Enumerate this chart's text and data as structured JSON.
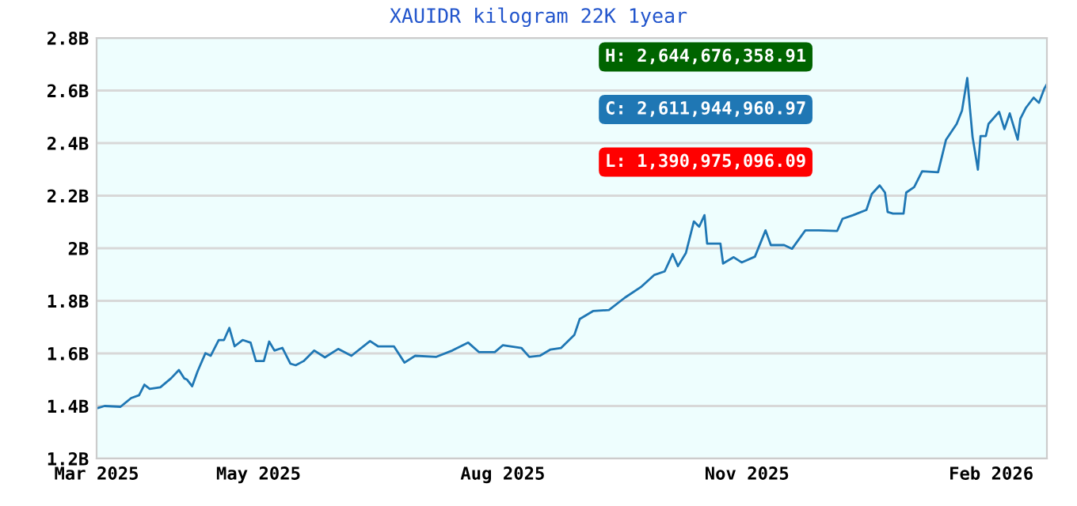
{
  "chart_data": {
    "type": "line",
    "title": "XAUIDR kilogram 22K 1year",
    "annotations": [
      "H: 2,644,676,358.91",
      "C: 2,611,944,960.97",
      "L: 1,390,975,096.09"
    ],
    "x": [
      "2025-03-01",
      "2025-03-04",
      "2025-03-10",
      "2025-03-14",
      "2025-03-17",
      "2025-03-19",
      "2025-03-21",
      "2025-03-25",
      "2025-03-29",
      "2025-04-01",
      "2025-04-03",
      "2025-04-04",
      "2025-04-06",
      "2025-04-08",
      "2025-04-11",
      "2025-04-13",
      "2025-04-16",
      "2025-04-18",
      "2025-04-20",
      "2025-04-22",
      "2025-04-25",
      "2025-04-28",
      "2025-04-30",
      "2025-05-03",
      "2025-05-05",
      "2025-05-07",
      "2025-05-10",
      "2025-05-13",
      "2025-05-15",
      "2025-05-18",
      "2025-05-22",
      "2025-05-26",
      "2025-05-31",
      "2025-06-05",
      "2025-06-12",
      "2025-06-15",
      "2025-06-21",
      "2025-06-25",
      "2025-06-29",
      "2025-07-07",
      "2025-07-13",
      "2025-07-19",
      "2025-07-23",
      "2025-07-29",
      "2025-08-01",
      "2025-08-08",
      "2025-08-11",
      "2025-08-15",
      "2025-08-19",
      "2025-08-23",
      "2025-08-28",
      "2025-08-30",
      "2025-09-04",
      "2025-09-10",
      "2025-09-16",
      "2025-09-22",
      "2025-09-27",
      "2025-10-01",
      "2025-10-04",
      "2025-10-06",
      "2025-10-09",
      "2025-10-12",
      "2025-10-14",
      "2025-10-16",
      "2025-10-17",
      "2025-10-22",
      "2025-10-23",
      "2025-10-27",
      "2025-10-30",
      "2025-11-04",
      "2025-11-08",
      "2025-11-10",
      "2025-11-15",
      "2025-11-18",
      "2025-11-23",
      "2025-11-28",
      "2025-12-05",
      "2025-12-07",
      "2025-12-11",
      "2025-12-16",
      "2025-12-18",
      "2025-12-21",
      "2025-12-23",
      "2025-12-24",
      "2025-12-26",
      "2025-12-30",
      "2025-12-31",
      "2026-01-03",
      "2026-01-06",
      "2026-01-12",
      "2026-01-15",
      "2026-01-19",
      "2026-01-21",
      "2026-01-23",
      "2026-01-24",
      "2026-01-25",
      "2026-01-27",
      "2026-01-28",
      "2026-01-30",
      "2026-01-31",
      "2026-02-04",
      "2026-02-06",
      "2026-02-08",
      "2026-02-11",
      "2026-02-12",
      "2026-02-14",
      "2026-02-17",
      "2026-02-19",
      "2026-02-21",
      "2026-02-22"
    ],
    "series": [
      {
        "color": "#1f77b4",
        "values": [
          1.391,
          1.4,
          1.397,
          1.43,
          1.441,
          1.481,
          1.465,
          1.471,
          1.505,
          1.537,
          1.505,
          1.501,
          1.475,
          1.531,
          1.601,
          1.591,
          1.651,
          1.651,
          1.697,
          1.627,
          1.651,
          1.641,
          1.571,
          1.571,
          1.645,
          1.611,
          1.621,
          1.561,
          1.555,
          1.571,
          1.611,
          1.585,
          1.617,
          1.591,
          1.647,
          1.627,
          1.627,
          1.565,
          1.591,
          1.587,
          1.611,
          1.641,
          1.605,
          1.605,
          1.631,
          1.621,
          1.587,
          1.591,
          1.615,
          1.621,
          1.671,
          1.731,
          1.761,
          1.765,
          1.812,
          1.852,
          1.898,
          1.912,
          1.978,
          1.932,
          1.982,
          2.102,
          2.082,
          2.126,
          2.018,
          2.018,
          1.942,
          1.966,
          1.946,
          1.968,
          2.068,
          2.012,
          2.012,
          1.998,
          2.068,
          2.068,
          2.066,
          2.112,
          2.126,
          2.146,
          2.206,
          2.239,
          2.212,
          2.138,
          2.132,
          2.132,
          2.212,
          2.233,
          2.293,
          2.289,
          2.413,
          2.473,
          2.523,
          2.648,
          2.533,
          2.423,
          2.299,
          2.427,
          2.427,
          2.473,
          2.519,
          2.453,
          2.513,
          2.413,
          2.493,
          2.533,
          2.573,
          2.553,
          2.607,
          2.624
        ]
      }
    ],
    "xlim": [
      "2025-03-01",
      "2026-02-22"
    ],
    "xticks": [
      {
        "value": "2025-03-01",
        "label": "Mar 2025"
      },
      {
        "value": "2025-05-01",
        "label": "May 2025"
      },
      {
        "value": "2025-08-01",
        "label": "Aug 2025"
      },
      {
        "value": "2025-11-01",
        "label": "Nov 2025"
      },
      {
        "value": "2026-02-01",
        "label": "Feb 2026"
      }
    ],
    "ylim": [
      1.2,
      2.8
    ],
    "yticks": [
      {
        "value": 1.2,
        "label": "1.2B"
      },
      {
        "value": 1.4,
        "label": "1.4B"
      },
      {
        "value": 1.6,
        "label": "1.6B"
      },
      {
        "value": 1.8,
        "label": "1.8B"
      },
      {
        "value": 2,
        "label": "2B"
      },
      {
        "value": 2.2,
        "label": "2.2B"
      },
      {
        "value": 2.4,
        "label": "2.4B"
      },
      {
        "value": 2.6,
        "label": "2.6B"
      },
      {
        "value": 2.8,
        "label": "2.8B"
      }
    ],
    "grid": "y",
    "legend": false
  }
}
